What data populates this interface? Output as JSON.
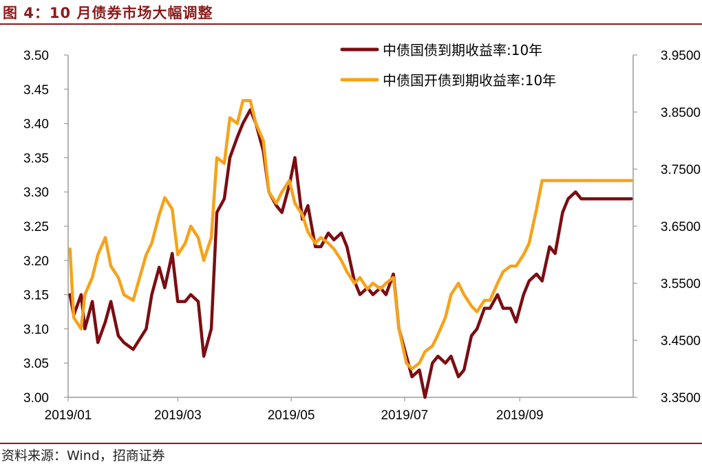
{
  "title": "图 4：10 月债券市场大幅调整",
  "source": "资料来源：Wind，招商证券",
  "chart_data": {
    "type": "line",
    "x_tick_labels": [
      "2019/01",
      "2019/03",
      "2019/05",
      "2019/07",
      "2019/09"
    ],
    "y_left": {
      "ylim": [
        3.0,
        3.5
      ],
      "ticks": [
        "3.00",
        "3.05",
        "3.10",
        "3.15",
        "3.20",
        "3.25",
        "3.30",
        "3.35",
        "3.40",
        "3.45",
        "3.50"
      ]
    },
    "y_right": {
      "ylim": [
        3.35,
        3.95
      ],
      "ticks": [
        "3.3500",
        "3.4500",
        "3.5500",
        "3.6500",
        "3.7500",
        "3.8500",
        "3.9500"
      ]
    },
    "legend_position": "top-right",
    "colors": {
      "series1": "#7b0d12",
      "series2": "#f5a31a",
      "axis": "#999999",
      "title": "#8b1a1a"
    },
    "series": [
      {
        "name": "中债国债到期收益率:10年",
        "axis": "left",
        "x": [
          "2019-01-02",
          "2019-01-04",
          "2019-01-08",
          "2019-01-10",
          "2019-01-14",
          "2019-01-17",
          "2019-01-21",
          "2019-01-24",
          "2019-01-28",
          "2019-01-31",
          "2019-02-05",
          "2019-02-12",
          "2019-02-15",
          "2019-02-19",
          "2019-02-22",
          "2019-02-26",
          "2019-03-01",
          "2019-03-05",
          "2019-03-08",
          "2019-03-12",
          "2019-03-15",
          "2019-03-19",
          "2019-03-22",
          "2019-03-26",
          "2019-03-29",
          "2019-04-02",
          "2019-04-05",
          "2019-04-09",
          "2019-04-12",
          "2019-04-16",
          "2019-04-19",
          "2019-04-23",
          "2019-04-26",
          "2019-04-30",
          "2019-05-03",
          "2019-05-07",
          "2019-05-10",
          "2019-05-14",
          "2019-05-17",
          "2019-05-21",
          "2019-05-24",
          "2019-05-28",
          "2019-05-31",
          "2019-06-04",
          "2019-06-07",
          "2019-06-11",
          "2019-06-14",
          "2019-06-18",
          "2019-06-21",
          "2019-06-25",
          "2019-06-28",
          "2019-07-02",
          "2019-07-05",
          "2019-07-09",
          "2019-07-12",
          "2019-07-16",
          "2019-07-19",
          "2019-07-23",
          "2019-07-26",
          "2019-07-30",
          "2019-08-02",
          "2019-08-06",
          "2019-08-09",
          "2019-08-13",
          "2019-08-16",
          "2019-08-20",
          "2019-08-23",
          "2019-08-27",
          "2019-08-30",
          "2019-09-03",
          "2019-09-06",
          "2019-09-10",
          "2019-09-13",
          "2019-09-17",
          "2019-09-20",
          "2019-09-24",
          "2019-09-27",
          "2019-10-01",
          "2019-10-04",
          "2019-10-08",
          "2019-10-11",
          "2019-10-15",
          "2019-10-18",
          "2019-10-22",
          "2019-10-25",
          "2019-10-29",
          "2019-10-31"
        ],
        "values": [
          3.15,
          3.12,
          3.15,
          3.1,
          3.14,
          3.08,
          3.11,
          3.14,
          3.09,
          3.08,
          3.07,
          3.1,
          3.15,
          3.19,
          3.16,
          3.21,
          3.14,
          3.14,
          3.15,
          3.14,
          3.06,
          3.1,
          3.27,
          3.29,
          3.35,
          3.38,
          3.4,
          3.42,
          3.4,
          3.36,
          3.3,
          3.28,
          3.27,
          3.31,
          3.35,
          3.26,
          3.28,
          3.22,
          3.22,
          3.24,
          3.23,
          3.24,
          3.22,
          3.17,
          3.15,
          3.16,
          3.15,
          3.16,
          3.15,
          3.18,
          3.1,
          3.06,
          3.03,
          3.04,
          3.0,
          3.05,
          3.06,
          3.05,
          3.06,
          3.03,
          3.04,
          3.09,
          3.1,
          3.13,
          3.13,
          3.15,
          3.13,
          3.13,
          3.11,
          3.15,
          3.17,
          3.18,
          3.17,
          3.22,
          3.21,
          3.27,
          3.29,
          3.3,
          3.29,
          3.29,
          3.29,
          3.29,
          3.29,
          3.29,
          3.29,
          3.29,
          3.29
        ]
      },
      {
        "name": "中债国开债到期收益率:10年",
        "axis": "right",
        "x": [
          "2019-01-02",
          "2019-01-04",
          "2019-01-08",
          "2019-01-10",
          "2019-01-14",
          "2019-01-17",
          "2019-01-21",
          "2019-01-24",
          "2019-01-28",
          "2019-01-31",
          "2019-02-05",
          "2019-02-12",
          "2019-02-15",
          "2019-02-19",
          "2019-02-22",
          "2019-02-26",
          "2019-03-01",
          "2019-03-05",
          "2019-03-08",
          "2019-03-12",
          "2019-03-15",
          "2019-03-19",
          "2019-03-22",
          "2019-03-26",
          "2019-03-29",
          "2019-04-02",
          "2019-04-05",
          "2019-04-09",
          "2019-04-12",
          "2019-04-16",
          "2019-04-19",
          "2019-04-23",
          "2019-04-26",
          "2019-04-30",
          "2019-05-03",
          "2019-05-07",
          "2019-05-10",
          "2019-05-14",
          "2019-05-17",
          "2019-05-21",
          "2019-05-24",
          "2019-05-28",
          "2019-05-31",
          "2019-06-04",
          "2019-06-07",
          "2019-06-11",
          "2019-06-14",
          "2019-06-18",
          "2019-06-21",
          "2019-06-25",
          "2019-06-28",
          "2019-07-02",
          "2019-07-05",
          "2019-07-09",
          "2019-07-12",
          "2019-07-16",
          "2019-07-19",
          "2019-07-23",
          "2019-07-26",
          "2019-07-30",
          "2019-08-02",
          "2019-08-06",
          "2019-08-09",
          "2019-08-13",
          "2019-08-16",
          "2019-08-20",
          "2019-08-23",
          "2019-08-27",
          "2019-08-30",
          "2019-09-03",
          "2019-09-06",
          "2019-09-10",
          "2019-09-13",
          "2019-09-17",
          "2019-09-20",
          "2019-09-24",
          "2019-09-27",
          "2019-10-01",
          "2019-10-04",
          "2019-10-08",
          "2019-10-11",
          "2019-10-15",
          "2019-10-18",
          "2019-10-22",
          "2019-10-25",
          "2019-10-29",
          "2019-10-31"
        ],
        "values": [
          3.61,
          3.49,
          3.47,
          3.53,
          3.56,
          3.6,
          3.63,
          3.58,
          3.56,
          3.53,
          3.52,
          3.6,
          3.62,
          3.67,
          3.7,
          3.68,
          3.6,
          3.62,
          3.65,
          3.63,
          3.59,
          3.63,
          3.77,
          3.76,
          3.84,
          3.83,
          3.87,
          3.87,
          3.83,
          3.8,
          3.71,
          3.69,
          3.71,
          3.73,
          3.69,
          3.67,
          3.64,
          3.62,
          3.63,
          3.62,
          3.61,
          3.59,
          3.57,
          3.55,
          3.56,
          3.54,
          3.55,
          3.54,
          3.55,
          3.56,
          3.47,
          3.41,
          3.4,
          3.41,
          3.43,
          3.44,
          3.46,
          3.49,
          3.53,
          3.55,
          3.53,
          3.51,
          3.5,
          3.52,
          3.52,
          3.55,
          3.57,
          3.58,
          3.58,
          3.6,
          3.62,
          3.68,
          3.73,
          3.73,
          3.73,
          3.73,
          3.73,
          3.73,
          3.73,
          3.73,
          3.73,
          3.73,
          3.73,
          3.73,
          3.73,
          3.73,
          3.73
        ]
      }
    ]
  }
}
